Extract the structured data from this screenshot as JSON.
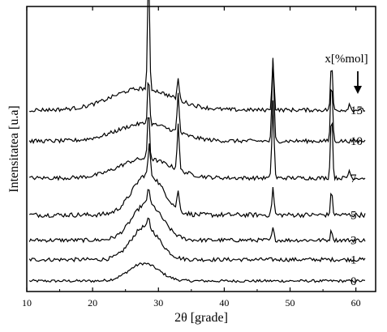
{
  "chart_data": {
    "type": "line",
    "title": "",
    "xlabel": "2θ [grade]",
    "ylabel": "Intensitatea [u.a]",
    "xlim": [
      10,
      63
    ],
    "x_ticks": [
      "10",
      "20",
      "30",
      "40",
      "50",
      "60"
    ],
    "y_ticks": [],
    "grid": false,
    "legend_title": "x[%mol]",
    "legend_arrow": "down-arrow",
    "x_step": 0.2,
    "series": [
      {
        "name": "0",
        "baseline": 0.0,
        "noise": 0.035,
        "hump": {
          "center": 27.8,
          "height": 0.45,
          "width": 3.2
        },
        "peaks": []
      },
      {
        "name": "1",
        "baseline": 0.55,
        "noise": 0.05,
        "hump": {
          "center": 28.0,
          "height": 0.85,
          "width": 3.0
        },
        "peaks": [
          {
            "x": 28.5,
            "h": 0.25
          }
        ]
      },
      {
        "name": "3",
        "baseline": 1.05,
        "noise": 0.05,
        "hump": {
          "center": 28.3,
          "height": 0.95,
          "width": 3.2
        },
        "peaks": [
          {
            "x": 28.5,
            "h": 0.45
          },
          {
            "x": 47.4,
            "h": 0.3
          },
          {
            "x": 56.3,
            "h": 0.25
          }
        ]
      },
      {
        "name": "5",
        "baseline": 1.7,
        "noise": 0.06,
        "hump": {
          "center": 28.4,
          "height": 1.05,
          "width": 3.3
        },
        "peaks": [
          {
            "x": 28.6,
            "h": 0.8
          },
          {
            "x": 33.0,
            "h": 0.5
          },
          {
            "x": 47.4,
            "h": 0.7
          },
          {
            "x": 56.3,
            "h": 0.6
          }
        ]
      },
      {
        "name": "7",
        "baseline": 2.65,
        "noise": 0.05,
        "hump": {
          "center": 28.0,
          "height": 0.5,
          "width": 5.5
        },
        "peaks": [
          {
            "x": 28.5,
            "h": 1.3
          },
          {
            "x": 33.0,
            "h": 1.2
          },
          {
            "x": 47.4,
            "h": 2.0
          },
          {
            "x": 56.3,
            "h": 1.7
          },
          {
            "x": 59.0,
            "h": 0.2
          }
        ]
      },
      {
        "name": "10",
        "baseline": 3.6,
        "noise": 0.05,
        "hump": {
          "center": 28.0,
          "height": 0.45,
          "width": 6.0
        },
        "peaks": [
          {
            "x": 28.5,
            "h": 1.25
          },
          {
            "x": 33.0,
            "h": 1.0
          },
          {
            "x": 47.4,
            "h": 2.1
          },
          {
            "x": 56.3,
            "h": 1.6
          }
        ]
      },
      {
        "name": "15",
        "baseline": 4.4,
        "noise": 0.05,
        "hump": {
          "center": 27.5,
          "height": 0.55,
          "width": 6.5
        },
        "peaks": [
          {
            "x": 28.5,
            "h": 2.9
          },
          {
            "x": 33.0,
            "h": 0.55
          },
          {
            "x": 47.4,
            "h": 1.3
          },
          {
            "x": 56.3,
            "h": 1.2
          },
          {
            "x": 59.0,
            "h": 0.15
          }
        ]
      }
    ]
  }
}
